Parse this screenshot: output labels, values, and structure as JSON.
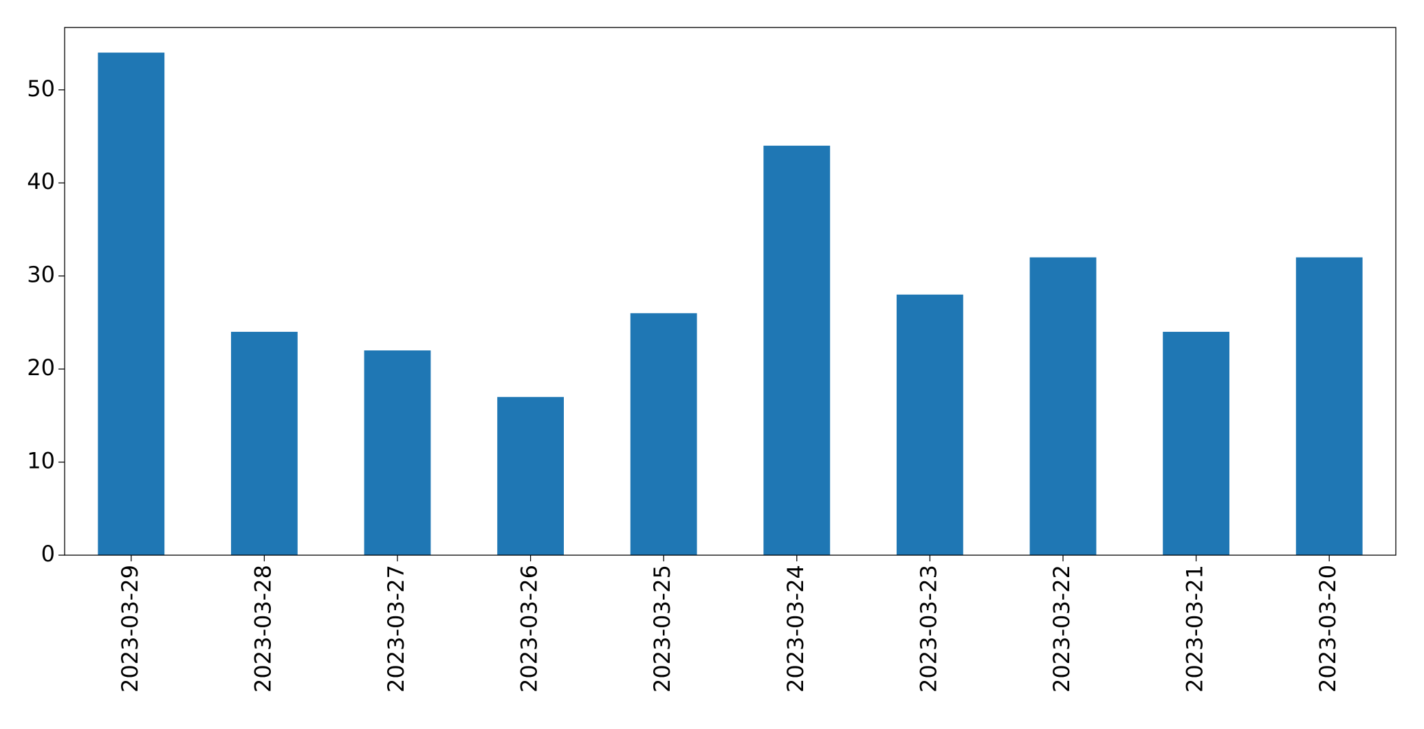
{
  "chart_data": {
    "type": "bar",
    "categories": [
      "2023-03-29",
      "2023-03-28",
      "2023-03-27",
      "2023-03-26",
      "2023-03-25",
      "2023-03-24",
      "2023-03-23",
      "2023-03-22",
      "2023-03-21",
      "2023-03-20"
    ],
    "values": [
      54,
      24,
      22,
      17,
      26,
      44,
      28,
      32,
      24,
      32
    ],
    "color": "#1f77b4",
    "ylim": [
      0,
      56.7
    ],
    "yticks": [
      0,
      10,
      20,
      30,
      40,
      50
    ],
    "grid": false
  }
}
